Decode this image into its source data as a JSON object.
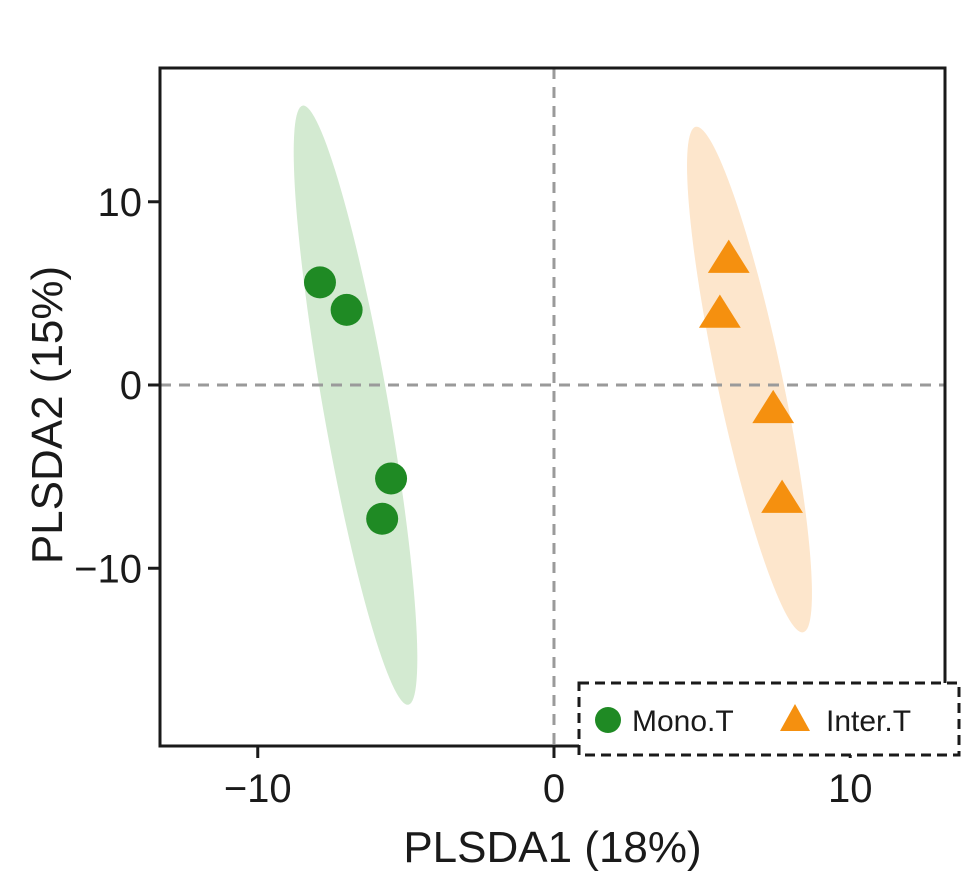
{
  "chart_data": {
    "type": "scatter",
    "xlabel": "PLSDA1 (18%)",
    "ylabel": "PLSDA2 (15%)",
    "xlim": [
      -13.3,
      13.2
    ],
    "ylim": [
      -19.7,
      17.3
    ],
    "xticks": [
      -10,
      0,
      10
    ],
    "yticks": [
      -10,
      0,
      10
    ],
    "xtick_labels": [
      "−10",
      "0",
      "10"
    ],
    "ytick_labels": [
      "−10",
      "0",
      "10"
    ],
    "reference_lines": {
      "x": 0,
      "y": 0,
      "style": "dashed"
    },
    "legend_position": "bottom-right",
    "series": [
      {
        "name": "Mono.T",
        "marker": "circle",
        "color": "#1f8a24",
        "ellipse_color": "#d3ead1",
        "points": [
          {
            "x": -7.9,
            "y": 5.6
          },
          {
            "x": -7.0,
            "y": 4.1
          },
          {
            "x": -5.5,
            "y": -5.1
          },
          {
            "x": -5.8,
            "y": -7.3
          }
        ],
        "ellipse": {
          "cx": -6.7,
          "cy": -1.1,
          "rx": 1.1,
          "ry": 16.6,
          "angle_deg": -10
        }
      },
      {
        "name": "Inter.T",
        "marker": "triangle",
        "color": "#f5900f",
        "ellipse_color": "#fde6cc",
        "points": [
          {
            "x": 5.9,
            "y": 6.9
          },
          {
            "x": 5.6,
            "y": 3.9
          },
          {
            "x": 7.4,
            "y": -1.3
          },
          {
            "x": 7.7,
            "y": -6.2
          }
        ],
        "ellipse": {
          "cx": 6.6,
          "cy": 0.3,
          "rx": 1.1,
          "ry": 14.1,
          "angle_deg": -12
        }
      }
    ]
  }
}
